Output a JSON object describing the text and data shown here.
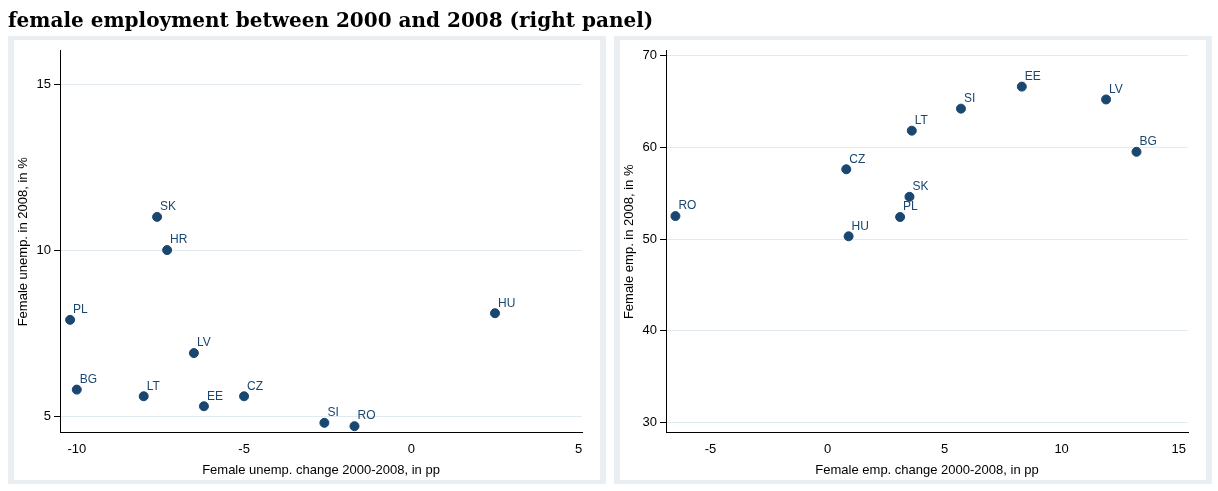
{
  "chart_data": [
    {
      "type": "scatter",
      "title": "female employment between 2000 and 2008 (right panel)",
      "xlabel": "Female unemp. change 2000-2008, in pp",
      "ylabel": "Female unemp. in 2008, in %",
      "x": [
        -7.6,
        -7.3,
        -10.2,
        -6.5,
        -10.0,
        -8.0,
        -6.2,
        -5.0,
        -2.6,
        -1.7,
        2.5
      ],
      "series": [
        {
          "color": "#1a476f",
          "values": [
            11.0,
            10.0,
            7.9,
            6.9,
            5.8,
            5.6,
            5.3,
            5.6,
            4.8,
            4.7,
            8.1
          ]
        }
      ],
      "annotations": [
        {
          "text": "SK",
          "x": -7.6,
          "y": 11.0
        },
        {
          "text": "HR",
          "x": -7.3,
          "y": 10.0
        },
        {
          "text": "PL",
          "x": -10.2,
          "y": 7.9
        },
        {
          "text": "LV",
          "x": -6.5,
          "y": 6.9
        },
        {
          "text": "BG",
          "x": -10.0,
          "y": 5.8
        },
        {
          "text": "LT",
          "x": -8.0,
          "y": 5.6
        },
        {
          "text": "EE",
          "x": -6.2,
          "y": 5.3
        },
        {
          "text": "CZ",
          "x": -5.0,
          "y": 5.6
        },
        {
          "text": "SI",
          "x": -2.6,
          "y": 4.8
        },
        {
          "text": "RO",
          "x": -1.7,
          "y": 4.7
        },
        {
          "text": "HU",
          "x": 2.5,
          "y": 8.1
        }
      ],
      "xlim": [
        -10.5,
        5.1
      ],
      "xticks": [
        -10,
        -5,
        0,
        5
      ],
      "ylim": [
        4.5,
        16
      ],
      "yticks": [
        5,
        10,
        15
      ],
      "grid": "y",
      "marker": "circle",
      "legend": false
    },
    {
      "type": "scatter",
      "xlabel": "Female emp. change 2000-2008, in pp",
      "ylabel": "Female emp. in 2008, in %",
      "x": [
        -6.5,
        0.8,
        0.9,
        3.1,
        3.5,
        3.6,
        5.7,
        8.3,
        11.9,
        13.2
      ],
      "series": [
        {
          "color": "#1a476f",
          "values": [
            52.5,
            57.6,
            50.3,
            52.4,
            54.6,
            61.8,
            64.2,
            66.6,
            65.2,
            59.5
          ]
        }
      ],
      "annotations": [
        {
          "text": "RO",
          "x": -6.5,
          "y": 52.5
        },
        {
          "text": "CZ",
          "x": 0.8,
          "y": 57.6
        },
        {
          "text": "HU",
          "x": 0.9,
          "y": 50.3
        },
        {
          "text": "PL",
          "x": 3.1,
          "y": 52.4
        },
        {
          "text": "SK",
          "x": 3.5,
          "y": 54.6
        },
        {
          "text": "LT",
          "x": 3.6,
          "y": 61.8
        },
        {
          "text": "SI",
          "x": 5.7,
          "y": 64.2
        },
        {
          "text": "EE",
          "x": 8.3,
          "y": 66.6
        },
        {
          "text": "LV",
          "x": 11.9,
          "y": 65.2
        },
        {
          "text": "BG",
          "x": 13.2,
          "y": 59.5
        }
      ],
      "xlim": [
        -6.9,
        15.4
      ],
      "xticks": [
        -5,
        0,
        5,
        10,
        15
      ],
      "ylim": [
        28.9,
        70.5
      ],
      "yticks": [
        30,
        40,
        50,
        60,
        70
      ],
      "grid": "y",
      "marker": "circle",
      "legend": false
    }
  ]
}
